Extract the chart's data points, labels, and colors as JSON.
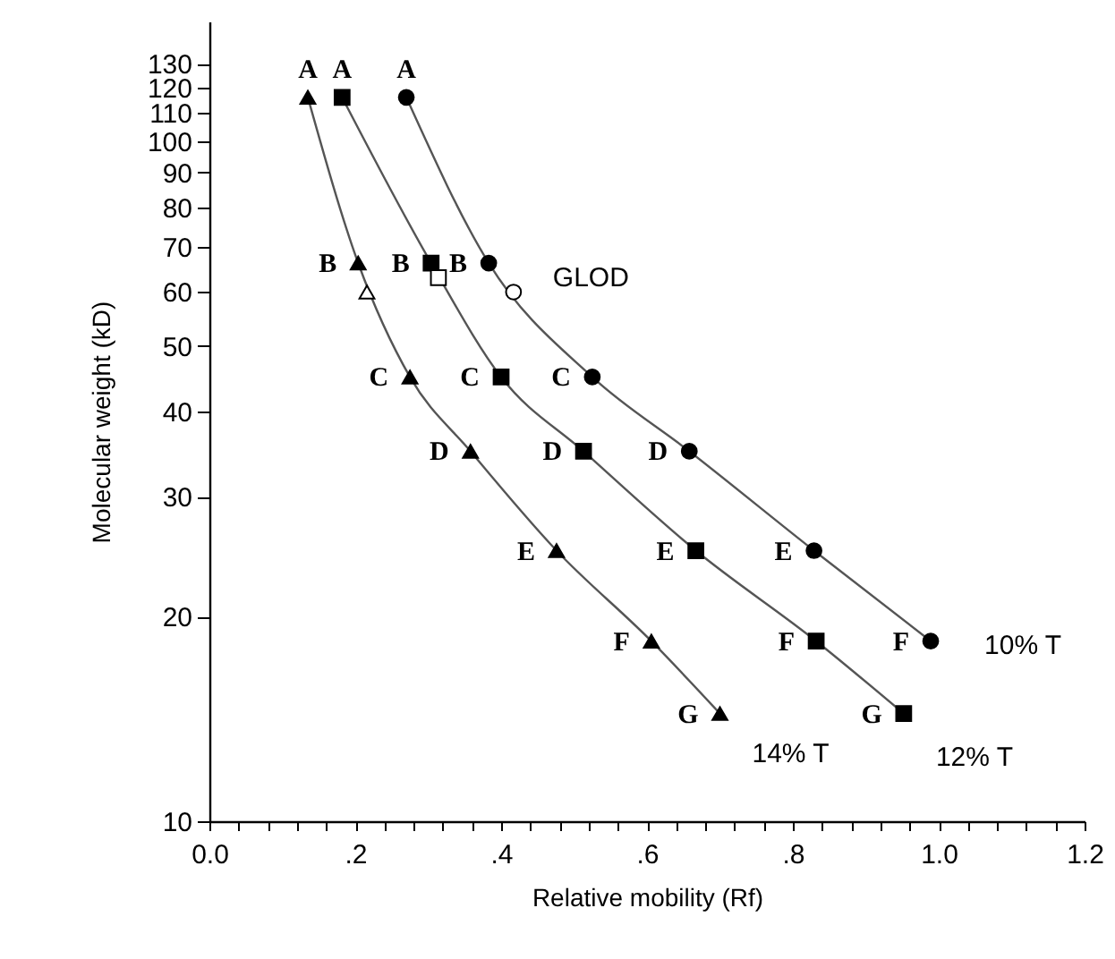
{
  "chart_data": {
    "type": "line",
    "xlabel": "Relative mobility (Rf)",
    "ylabel": "Molecular weight (kD)",
    "xlim": [
      0,
      1.2
    ],
    "ylim": [
      10,
      150
    ],
    "log": "y",
    "grid": false,
    "xticks": [
      {
        "value": 0,
        "label": "0.0"
      },
      {
        "value": 0.04,
        "label": null
      },
      {
        "value": 0.08,
        "label": null
      },
      {
        "value": 0.12,
        "label": null
      },
      {
        "value": 0.16,
        "label": null
      },
      {
        "value": 0.2,
        "label": ".2"
      },
      {
        "value": 0.24,
        "label": null
      },
      {
        "value": 0.28,
        "label": null
      },
      {
        "value": 0.32,
        "label": null
      },
      {
        "value": 0.36,
        "label": null
      },
      {
        "value": 0.4,
        "label": ".4"
      },
      {
        "value": 0.44,
        "label": null
      },
      {
        "value": 0.48,
        "label": null
      },
      {
        "value": 0.52,
        "label": null
      },
      {
        "value": 0.56,
        "label": null
      },
      {
        "value": 0.6,
        "label": ".6"
      },
      {
        "value": 0.64,
        "label": null
      },
      {
        "value": 0.68,
        "label": null
      },
      {
        "value": 0.72,
        "label": null
      },
      {
        "value": 0.76,
        "label": null
      },
      {
        "value": 0.8,
        "label": ".8"
      },
      {
        "value": 0.84,
        "label": null
      },
      {
        "value": 0.88,
        "label": null
      },
      {
        "value": 0.92,
        "label": null
      },
      {
        "value": 0.96,
        "label": null
      },
      {
        "value": 1.0,
        "label": "1.0"
      },
      {
        "value": 1.04,
        "label": null
      },
      {
        "value": 1.08,
        "label": null
      },
      {
        "value": 1.12,
        "label": null
      },
      {
        "value": 1.16,
        "label": null
      },
      {
        "value": 1.2,
        "label": "1.2"
      }
    ],
    "yticks": [
      10,
      20,
      30,
      40,
      50,
      60,
      70,
      80,
      90,
      100,
      110,
      120,
      130
    ],
    "series": [
      {
        "name": "14% T",
        "marker": "triangle",
        "color": "#000000",
        "x": [
          0.135,
          0.204,
          0.275,
          0.358,
          0.476,
          0.606,
          0.7
        ],
        "values": [
          116,
          66.2,
          45,
          35,
          25,
          18.4,
          14.4
        ]
      },
      {
        "name": "12% T",
        "marker": "square",
        "color": "#000000",
        "x": [
          0.182,
          0.304,
          0.4,
          0.513,
          0.667,
          0.832,
          0.952
        ],
        "values": [
          116,
          66.2,
          45,
          35,
          25,
          18.4,
          14.4
        ]
      },
      {
        "name": "10% T",
        "marker": "circle",
        "color": "#000000",
        "x": [
          0.27,
          0.383,
          0.525,
          0.658,
          0.829,
          0.989
        ],
        "values": [
          116,
          66.2,
          45,
          35,
          25,
          18.4
        ]
      },
      {
        "type": "scatter",
        "marker": "triangle",
        "color": "#ffffff",
        "x": [
          0.216
        ],
        "values": [
          60
        ]
      },
      {
        "type": "scatter",
        "marker": "square",
        "color": "#ffffff",
        "x": [
          0.314
        ],
        "values": [
          63
        ]
      },
      {
        "name": "GLOD",
        "type": "scatter",
        "marker": "circle",
        "color": "#ffffff",
        "x": [
          0.417
        ],
        "values": [
          60
        ]
      }
    ],
    "annotations": [
      {
        "text": "A",
        "x": 0.135,
        "y": 116
      },
      {
        "text": "A",
        "x": 0.182,
        "y": 116
      },
      {
        "text": "A",
        "x": 0.27,
        "y": 116
      },
      {
        "text": "B",
        "x": 0.204,
        "y": 66.2
      },
      {
        "text": "B",
        "x": 0.304,
        "y": 66.2
      },
      {
        "text": "B",
        "x": 0.383,
        "y": 66.2
      },
      {
        "text": "C",
        "x": 0.275,
        "y": 45
      },
      {
        "text": "C",
        "x": 0.4,
        "y": 45
      },
      {
        "text": "C",
        "x": 0.525,
        "y": 45
      },
      {
        "text": "D",
        "x": 0.358,
        "y": 35
      },
      {
        "text": "D",
        "x": 0.513,
        "y": 35
      },
      {
        "text": "D",
        "x": 0.658,
        "y": 35
      },
      {
        "text": "E",
        "x": 0.476,
        "y": 25
      },
      {
        "text": "E",
        "x": 0.667,
        "y": 25
      },
      {
        "text": "E",
        "x": 0.829,
        "y": 25
      },
      {
        "text": "F",
        "x": 0.606,
        "y": 18.4
      },
      {
        "text": "F",
        "x": 0.832,
        "y": 18.4
      },
      {
        "text": "F",
        "x": 0.989,
        "y": 18.4
      },
      {
        "text": "G",
        "x": 0.7,
        "y": 14.4
      },
      {
        "text": "G",
        "x": 0.952,
        "y": 14.4
      }
    ]
  }
}
